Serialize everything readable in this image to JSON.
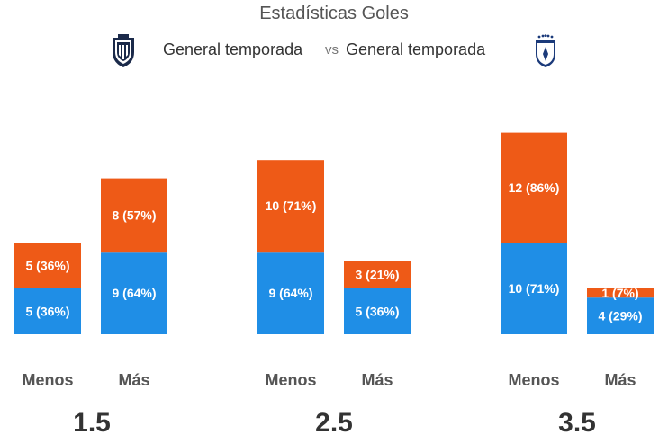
{
  "header": {
    "title": "Estadísticas Goles",
    "home_label": "General temporada",
    "vs_label": "vs",
    "away_label": "General temporada",
    "home_logo_icon": "monterrey-crest-icon",
    "away_logo_icon": "pachuca-crest-icon"
  },
  "colors": {
    "home": "#1f8ee6",
    "away": "#ee5a17",
    "text": "#555555",
    "bar_text": "#ffffff"
  },
  "chart_data": {
    "type": "bar",
    "stacked": false,
    "title": "Estadísticas Goles",
    "groups": [
      {
        "threshold": "1.5",
        "bars": [
          {
            "label": "Menos",
            "home": {
              "value": 5,
              "text": "5 (36%)"
            },
            "away": {
              "value": 5,
              "text": "5 (36%)"
            }
          },
          {
            "label": "Más",
            "home": {
              "value": 9,
              "text": "9 (64%)"
            },
            "away": {
              "value": 8,
              "text": "8 (57%)"
            }
          }
        ]
      },
      {
        "threshold": "2.5",
        "bars": [
          {
            "label": "Menos",
            "home": {
              "value": 9,
              "text": "9 (64%)"
            },
            "away": {
              "value": 10,
              "text": "10 (71%)"
            }
          },
          {
            "label": "Más",
            "home": {
              "value": 5,
              "text": "5 (36%)"
            },
            "away": {
              "value": 3,
              "text": "3 (21%)"
            }
          }
        ]
      },
      {
        "threshold": "3.5",
        "bars": [
          {
            "label": "Menos",
            "home": {
              "value": 10,
              "text": "10 (71%)"
            },
            "away": {
              "value": 12,
              "text": "12 (86%)"
            }
          },
          {
            "label": "Más",
            "home": {
              "value": 4,
              "text": "4 (29%)"
            },
            "away": {
              "value": 1,
              "text": "1 (7%)"
            }
          }
        ]
      }
    ]
  }
}
